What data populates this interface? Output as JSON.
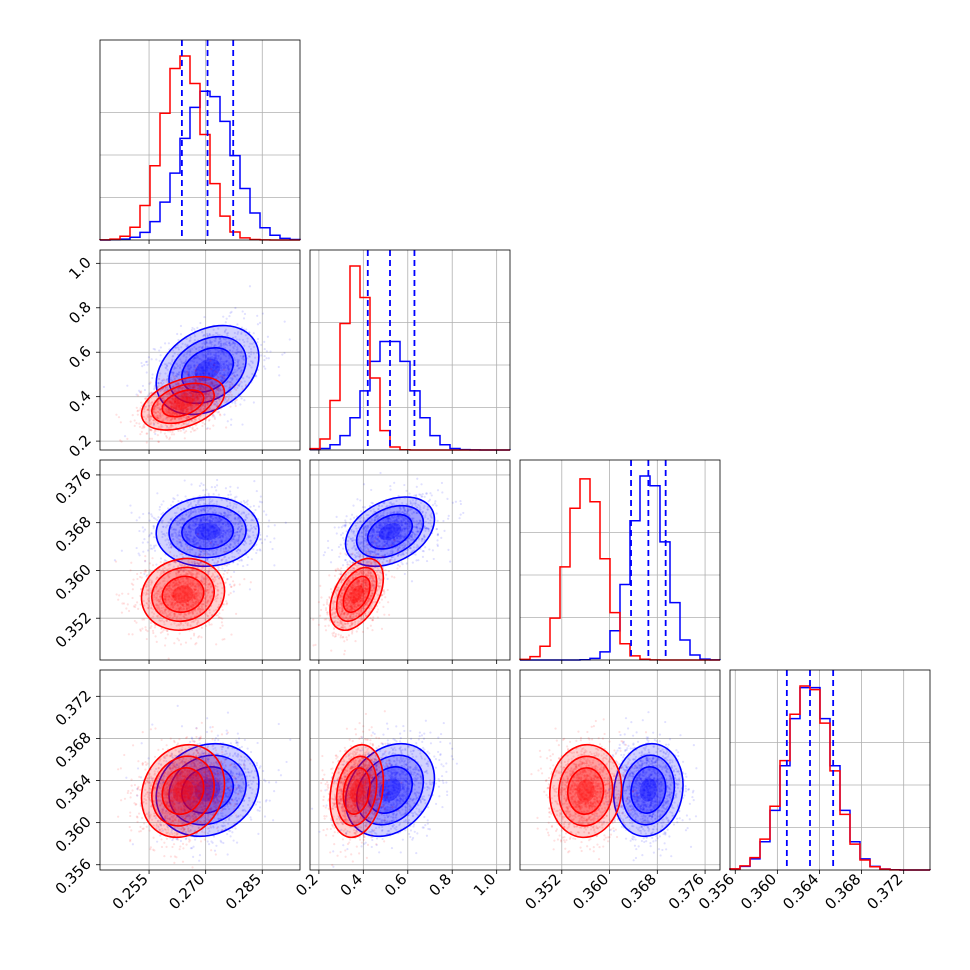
{
  "chart_data": {
    "type": "corner",
    "title": "",
    "grid": true,
    "parameters": [
      {
        "range": [
          0.242,
          0.295
        ],
        "ticks": [
          0.255,
          0.27,
          0.285
        ],
        "tick_labels": [
          "0.255",
          "0.270",
          "0.285"
        ]
      },
      {
        "range": [
          0.16,
          1.06
        ],
        "ticks": [
          0.2,
          0.4,
          0.6,
          0.8,
          1.0
        ],
        "tick_labels": [
          "0.2",
          "0.4",
          "0.6",
          "0.8",
          "1.0"
        ]
      },
      {
        "range": [
          0.345,
          0.3785
        ],
        "ticks": [
          0.352,
          0.36,
          0.368,
          0.376
        ],
        "tick_labels": [
          "0.352",
          "0.360",
          "0.368",
          "0.376"
        ]
      },
      {
        "range": [
          0.3555,
          0.3745
        ],
        "ticks": [
          0.356,
          0.36,
          0.364,
          0.368,
          0.372
        ],
        "tick_labels": [
          "0.356",
          "0.360",
          "0.364",
          "0.368",
          "0.372"
        ]
      }
    ],
    "series": [
      {
        "color": "#0000ff",
        "means": [
          0.2705,
          0.52,
          0.3665,
          0.3631
        ],
        "sds": [
          0.0068,
          0.1,
          0.0029,
          0.0022
        ],
        "correlations": {
          "0-1": 0.3,
          "0-2": 0.05,
          "0-3": 0.15,
          "1-2": 0.35,
          "1-3": 0.25,
          "2-3": 0.1
        }
      },
      {
        "color": "#ff0000",
        "means": [
          0.264,
          0.37,
          0.356,
          0.363
        ],
        "sds": [
          0.0055,
          0.06,
          0.003,
          0.0022
        ],
        "correlations": {
          "0-1": 0.4,
          "0-2": 0.1,
          "0-3": 0.15,
          "1-2": 0.45,
          "1-3": 0.2,
          "2-3": 0.05
        }
      }
    ],
    "quantiles": [
      [
        0.2637,
        0.2705,
        0.2773
      ],
      [
        0.42,
        0.52,
        0.63
      ],
      [
        0.3636,
        0.3665,
        0.3694
      ],
      [
        0.3609,
        0.3631,
        0.3653
      ]
    ],
    "quantile_color": "#0000ff"
  }
}
